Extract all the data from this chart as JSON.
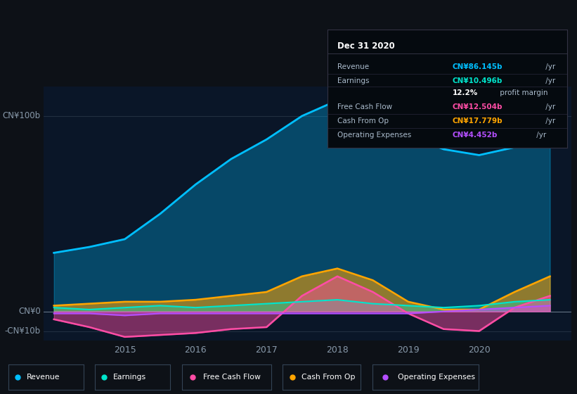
{
  "background_color": "#0d1117",
  "plot_bg_color": "#0a1628",
  "years": [
    2014.0,
    2014.5,
    2015.0,
    2015.5,
    2016.0,
    2016.5,
    2017.0,
    2017.5,
    2018.0,
    2018.5,
    2019.0,
    2019.5,
    2020.0,
    2020.5,
    2021.0
  ],
  "revenue": [
    30,
    33,
    37,
    50,
    65,
    78,
    88,
    100,
    108,
    98,
    90,
    83,
    80,
    84,
    87
  ],
  "earnings": [
    2,
    1,
    2,
    3,
    2,
    3,
    4,
    5,
    6,
    4,
    3,
    2,
    3,
    5,
    6
  ],
  "free_cash_flow": [
    -4,
    -8,
    -13,
    -12,
    -11,
    -9,
    -8,
    8,
    18,
    10,
    -1,
    -9,
    -10,
    2,
    8
  ],
  "cash_from_op": [
    3,
    4,
    5,
    5,
    6,
    8,
    10,
    18,
    22,
    16,
    5,
    1,
    1,
    10,
    18
  ],
  "operating_exp": [
    -1,
    -1,
    -2,
    -1,
    -1,
    -1,
    -1,
    -1,
    -1,
    -1,
    -1,
    0,
    1,
    2,
    3
  ],
  "revenue_color": "#00bfff",
  "earnings_color": "#00e5cc",
  "free_cash_flow_color": "#ff4da6",
  "cash_from_op_color": "#ffa500",
  "operating_exp_color": "#b44fff",
  "ylabel_top": "CN¥100b",
  "ylabel_bottom": "-CN¥10b",
  "ylabel_zero": "CN¥0",
  "x_ticks": [
    2015,
    2016,
    2017,
    2018,
    2019,
    2020
  ],
  "x_labels": [
    "2015",
    "2016",
    "2017",
    "2018",
    "2019",
    "2020"
  ],
  "ylim": [
    -15,
    115
  ],
  "tooltip_date": "Dec 31 2020",
  "tooltip_items": [
    {
      "label": "Revenue",
      "value": "CN¥86.145b",
      "suffix": " /yr",
      "color": "#00bfff"
    },
    {
      "label": "Earnings",
      "value": "CN¥10.496b",
      "suffix": " /yr",
      "color": "#00e5cc"
    },
    {
      "label": "",
      "value": "12.2%",
      "suffix": " profit margin",
      "color": "#ffffff"
    },
    {
      "label": "Free Cash Flow",
      "value": "CN¥12.504b",
      "suffix": " /yr",
      "color": "#ff4da6"
    },
    {
      "label": "Cash From Op",
      "value": "CN¥17.779b",
      "suffix": " /yr",
      "color": "#ffa500"
    },
    {
      "label": "Operating Expenses",
      "value": "CN¥4.452b",
      "suffix": " /yr",
      "color": "#b44fff"
    }
  ],
  "legend_items": [
    {
      "label": "Revenue",
      "color": "#00bfff"
    },
    {
      "label": "Earnings",
      "color": "#00e5cc"
    },
    {
      "label": "Free Cash Flow",
      "color": "#ff4da6"
    },
    {
      "label": "Cash From Op",
      "color": "#ffa500"
    },
    {
      "label": "Operating Expenses",
      "color": "#b44fff"
    }
  ]
}
